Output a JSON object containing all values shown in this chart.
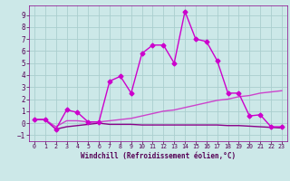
{
  "xlabel": "Windchill (Refroidissement éolien,°C)",
  "x": [
    0,
    1,
    2,
    3,
    4,
    5,
    6,
    7,
    8,
    9,
    10,
    11,
    12,
    13,
    14,
    15,
    16,
    17,
    18,
    19,
    20,
    21,
    22,
    23
  ],
  "y_main": [
    0.3,
    0.3,
    -0.5,
    1.1,
    0.9,
    0.1,
    0.1,
    3.5,
    3.9,
    2.5,
    5.8,
    6.5,
    6.5,
    5.0,
    9.3,
    7.0,
    6.8,
    5.2,
    2.5,
    2.5,
    0.6,
    0.7,
    -0.3,
    -0.3
  ],
  "y_line2": [
    0.3,
    0.3,
    -0.3,
    0.2,
    0.2,
    0.1,
    0.1,
    0.2,
    0.3,
    0.4,
    0.6,
    0.8,
    1.0,
    1.1,
    1.3,
    1.5,
    1.7,
    1.9,
    2.0,
    2.2,
    2.3,
    2.5,
    2.6,
    2.7
  ],
  "y_line3": [
    0.3,
    0.3,
    -0.5,
    -0.3,
    -0.2,
    -0.1,
    0.0,
    -0.1,
    -0.1,
    -0.1,
    -0.15,
    -0.15,
    -0.15,
    -0.15,
    -0.15,
    -0.15,
    -0.15,
    -0.15,
    -0.2,
    -0.2,
    -0.25,
    -0.3,
    -0.35,
    -0.4
  ],
  "bg_color": "#cce8e8",
  "grid_color": "#aacece",
  "line_color1": "#cc00cc",
  "line_color2": "#cc44cc",
  "line_color3": "#880088",
  "ylim": [
    -1.5,
    9.8
  ],
  "xlim": [
    -0.5,
    23.5
  ],
  "yticks": [
    -1,
    0,
    1,
    2,
    3,
    4,
    5,
    6,
    7,
    8,
    9
  ],
  "xticks": [
    0,
    1,
    2,
    3,
    4,
    5,
    6,
    7,
    8,
    9,
    10,
    11,
    12,
    13,
    14,
    15,
    16,
    17,
    18,
    19,
    20,
    21,
    22,
    23
  ],
  "marker": "D",
  "markersize": 2.5,
  "linewidth": 1.0
}
